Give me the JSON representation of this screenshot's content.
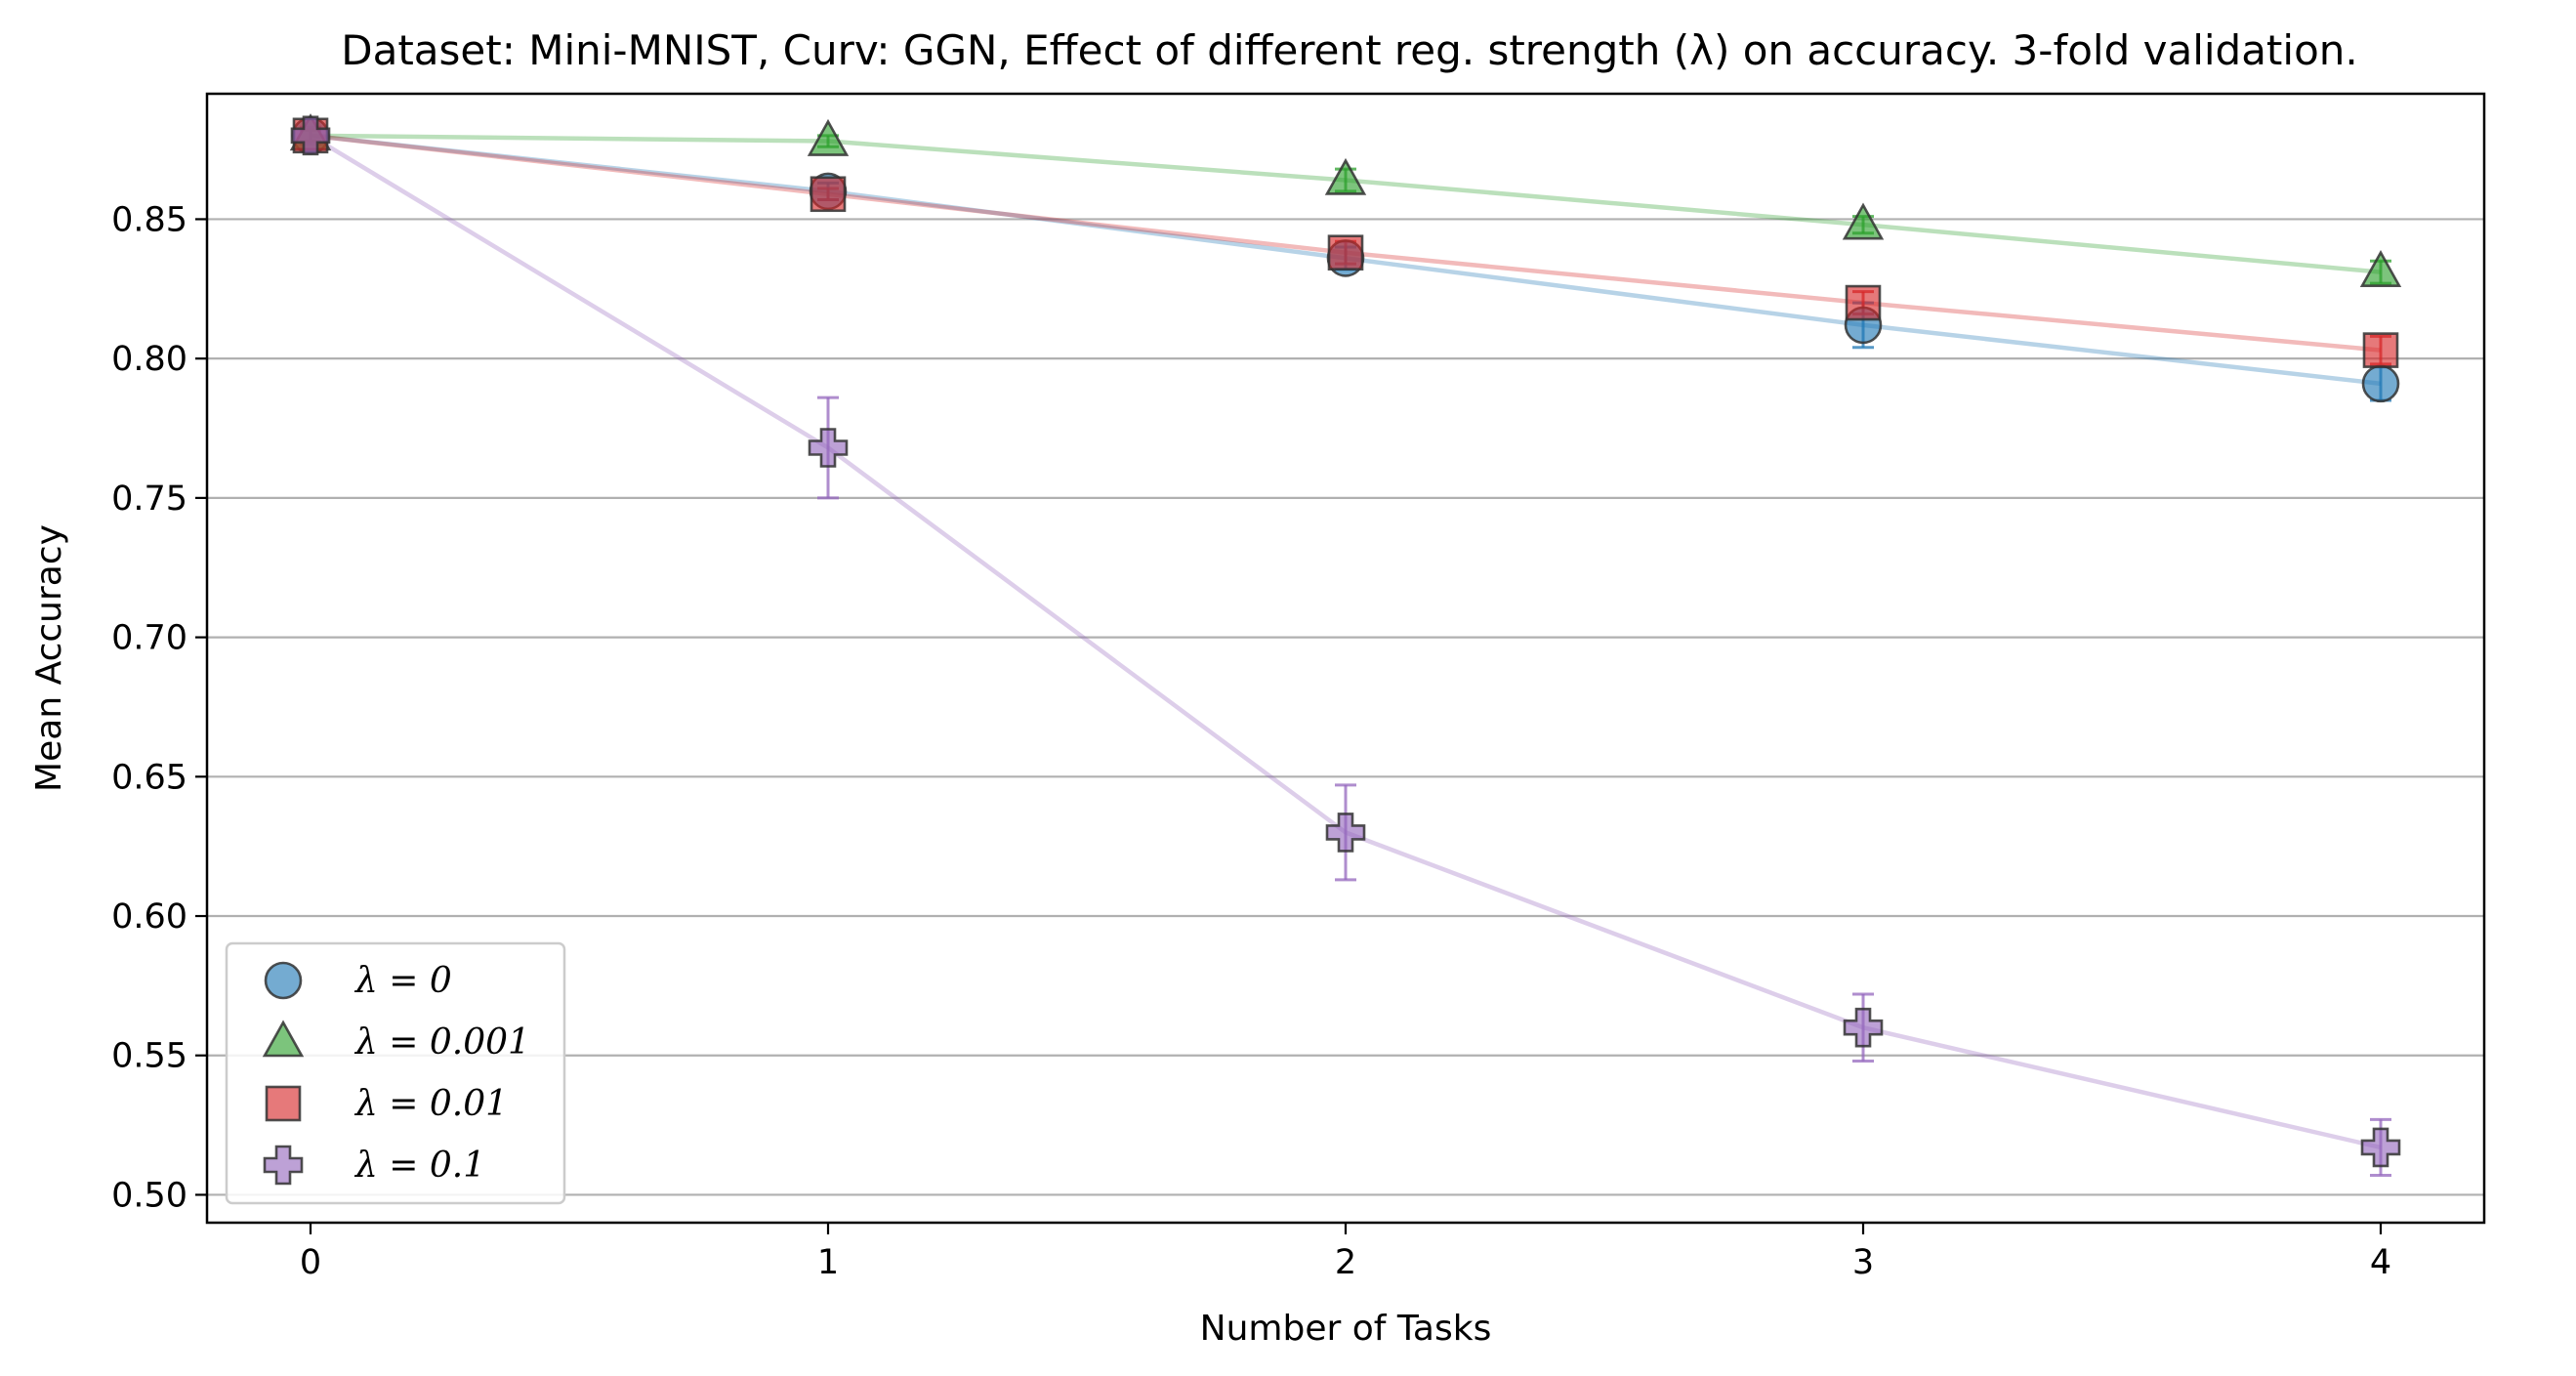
{
  "chart_data": {
    "type": "line",
    "title": "Dataset: Mini-MNIST, Curv: GGN, Effect of different reg. strength (λ) on accuracy. 3-fold validation.",
    "xlabel": "Number of Tasks",
    "ylabel": "Mean Accuracy",
    "x": [
      0,
      1,
      2,
      3,
      4
    ],
    "xlim": [
      -0.2,
      4.2
    ],
    "ylim": [
      0.49,
      0.895
    ],
    "xticks": [
      "0",
      "1",
      "2",
      "3",
      "4"
    ],
    "yticks": [
      "0.50",
      "0.55",
      "0.60",
      "0.65",
      "0.70",
      "0.75",
      "0.80",
      "0.85"
    ],
    "grid": "horizontal",
    "legend_position": "lower-left",
    "series": [
      {
        "name": "λ = 0",
        "marker": "circle",
        "color": "#1f77b4",
        "values": [
          0.88,
          0.86,
          0.836,
          0.812,
          0.791
        ],
        "errors": [
          0.002,
          0.003,
          0.004,
          0.008,
          0.006
        ]
      },
      {
        "name": "λ = 0.001",
        "marker": "triangle",
        "color": "#2ca02c",
        "values": [
          0.88,
          0.878,
          0.864,
          0.848,
          0.831
        ],
        "errors": [
          0.002,
          0.002,
          0.004,
          0.003,
          0.004
        ]
      },
      {
        "name": "λ = 0.01",
        "marker": "square",
        "color": "#d62728",
        "values": [
          0.88,
          0.859,
          0.838,
          0.82,
          0.803
        ],
        "errors": [
          0.002,
          0.002,
          0.004,
          0.004,
          0.005
        ]
      },
      {
        "name": "λ = 0.1",
        "marker": "plus",
        "color": "#9467bd",
        "values": [
          0.88,
          0.768,
          0.63,
          0.56,
          0.517
        ],
        "errors": [
          0.003,
          0.018,
          0.017,
          0.012,
          0.01
        ]
      }
    ]
  }
}
